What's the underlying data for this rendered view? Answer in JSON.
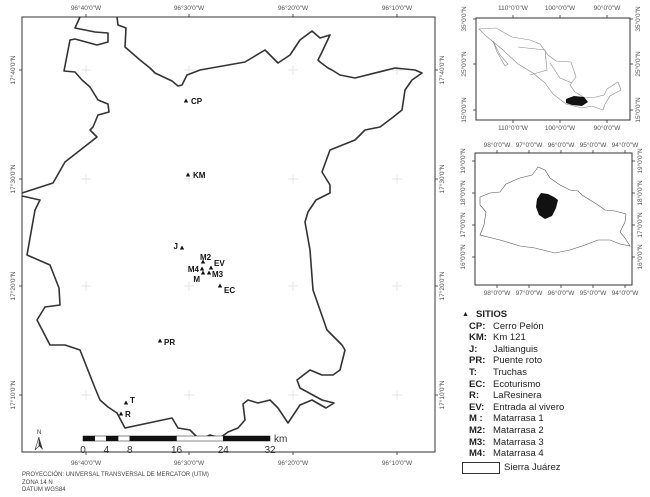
{
  "main_map": {
    "lon_ticks": [
      "96°40'0\"W",
      "96°30'0\"W",
      "96°20'0\"W",
      "96°10'0\"W"
    ],
    "lat_ticks": [
      "17°40'0\"N",
      "17°30'0\"N",
      "17°20'0\"N",
      "17°10'0\"N"
    ],
    "sites": [
      {
        "code": "CP"
      },
      {
        "code": "KM"
      },
      {
        "code": "J"
      },
      {
        "code": "M2"
      },
      {
        "code": "EV"
      },
      {
        "code": "M4"
      },
      {
        "code": "M"
      },
      {
        "code": "M3"
      },
      {
        "code": "EC"
      },
      {
        "code": "PR"
      },
      {
        "code": "T"
      },
      {
        "code": "R"
      }
    ],
    "north_label": "N",
    "scale": {
      "labels": [
        "0",
        "4",
        "8",
        "16",
        "24",
        "32"
      ],
      "unit": "km"
    }
  },
  "inset_mexico": {
    "lon_ticks": [
      "110°0'0\"W",
      "100°0'0\"W",
      "90°0'0\"W"
    ],
    "lat_ticks": [
      "35°0'0\"N",
      "25°0'0\"N",
      "15°0'0\"N"
    ]
  },
  "inset_oaxaca": {
    "lon_ticks": [
      "98°0'0\"W",
      "97°0'0\"W",
      "96°0'0\"W",
      "95°0'0\"W",
      "94°0'0\"W"
    ],
    "lat_ticks": [
      "19°0'0\"N",
      "18°0'0\"N",
      "17°0'0\"N",
      "16°0'0\"N"
    ]
  },
  "legend": {
    "title": "SITIOS",
    "items": [
      {
        "code": "CP:",
        "name": "Cerro Pelón"
      },
      {
        "code": "KM:",
        "name": "Km 121"
      },
      {
        "code": "J:",
        "name": "Jaltianguis"
      },
      {
        "code": "PR:",
        "name": "Puente roto"
      },
      {
        "code": "T:",
        "name": "Truchas"
      },
      {
        "code": "EC:",
        "name": "Ecoturismo"
      },
      {
        "code": "R:",
        "name": "LaResinera"
      },
      {
        "code": "EV:",
        "name": "Entrada al vivero"
      },
      {
        "code": "M :",
        "name": "Matarrasa 1"
      },
      {
        "code": "M2:",
        "name": "Matarrasa 2"
      },
      {
        "code": "M3:",
        "name": "Matarrasa 3"
      },
      {
        "code": "M4:",
        "name": "Matarrasa 4"
      }
    ],
    "area_label": "Sierra Juárez"
  },
  "footer": {
    "projection": "PROYECCIÓN: UNIVERSAL TRANSVERSAL DE MERCATOR (UTM)",
    "zone": "ZONA 14 N",
    "datum": "DATUM WGS84"
  },
  "colors": {
    "boundary": "#333333",
    "highlight": "#111111",
    "grid": "#dddddd"
  }
}
